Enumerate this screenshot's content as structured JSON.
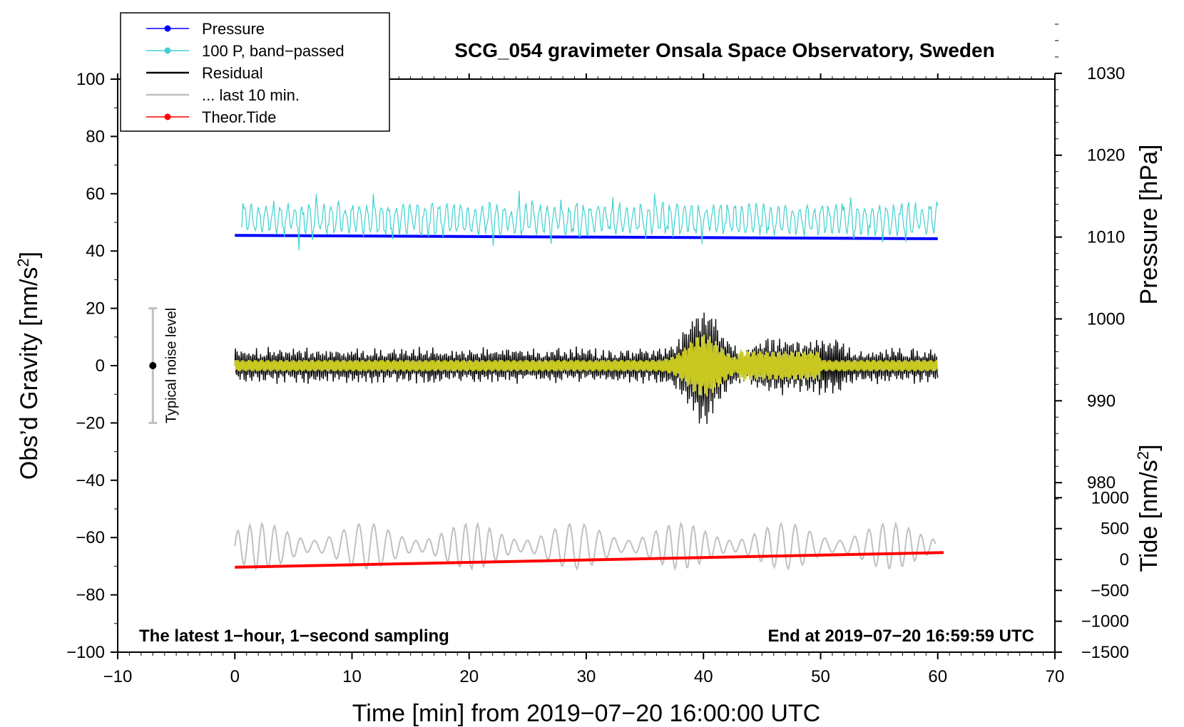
{
  "chart_data": {
    "type": "line",
    "title": "SCG_054 gravimeter Onsala Space Observatory, Sweden",
    "xlabel": "Time [min] from 2019−07−20 16:00:00 UTC",
    "ylabel_left": "Obs’d Gravity [nm/s",
    "ylabel_left_sup": "2",
    "ylabel_left_end": "]",
    "ylabel_pressure": "Pressure [hPa]",
    "ylabel_tide": "Tide [nm/s",
    "ylabel_tide_sup": "2",
    "ylabel_tide_end": "]",
    "xlim": [
      -10,
      70
    ],
    "ylim": [
      -100,
      100
    ],
    "pressure_lim": [
      968,
      1038
    ],
    "tide_lim": [
      -1500,
      1500
    ],
    "x_ticks": [
      -10,
      0,
      10,
      20,
      30,
      40,
      50,
      60,
      70
    ],
    "x_tick_labels": [
      "−10",
      "0",
      "10",
      "20",
      "30",
      "40",
      "50",
      "60",
      "70"
    ],
    "y_ticks": [
      -100,
      -80,
      -60,
      -40,
      -20,
      0,
      20,
      40,
      60,
      80,
      100
    ],
    "y_tick_labels": [
      "−100",
      "−80",
      "−60",
      "−40",
      "−20",
      "0",
      "20",
      "40",
      "60",
      "80",
      "100"
    ],
    "pressure_ticks": [
      980,
      990,
      1000,
      1010,
      1020,
      1030
    ],
    "tide_ticks": [
      -1500,
      -1000,
      -500,
      0,
      500,
      1000
    ],
    "tide_tick_labels": [
      "−1500",
      "−1000",
      "−500",
      "0",
      "500",
      "1000"
    ],
    "noise_bar": {
      "label": "Typical noise level",
      "center": 0,
      "low": -20,
      "high": 20,
      "x": -7
    },
    "note_left": "The latest 1−hour, 1−second sampling",
    "note_right": "End at 2019−07−20 16:59:59 UTC",
    "series": [
      {
        "name": "Pressure",
        "color": "#0000ff",
        "kind": "pressure_hPa",
        "start": [
          0,
          1010.2
        ],
        "end": [
          60,
          1009.8
        ]
      },
      {
        "name": "100 P, band−passed",
        "color": "#40d0d0",
        "kind": "left_axis_nm_s2",
        "center": 52,
        "amplitude_range": [
          37,
          61
        ]
      },
      {
        "name": "Residual",
        "color": "#000000",
        "kind": "left_axis_nm_s2",
        "center": 0,
        "amplitude_range": [
          -23,
          24
        ],
        "peak_time_min": 40
      },
      {
        "name": "... last 10 min.",
        "color": "#c0c0c0",
        "kind": "left_axis_nm_s2",
        "center": -63,
        "amplitude_range": [
          -74,
          -50
        ]
      },
      {
        "name": "Theor.Tide",
        "color": "#ff0000",
        "kind": "tide_nm_s2",
        "start": [
          0,
          -125
        ],
        "end": [
          60.5,
          112
        ]
      }
    ],
    "overlay_series": {
      "name": "smoothed residual",
      "color": "#c8c820"
    }
  }
}
